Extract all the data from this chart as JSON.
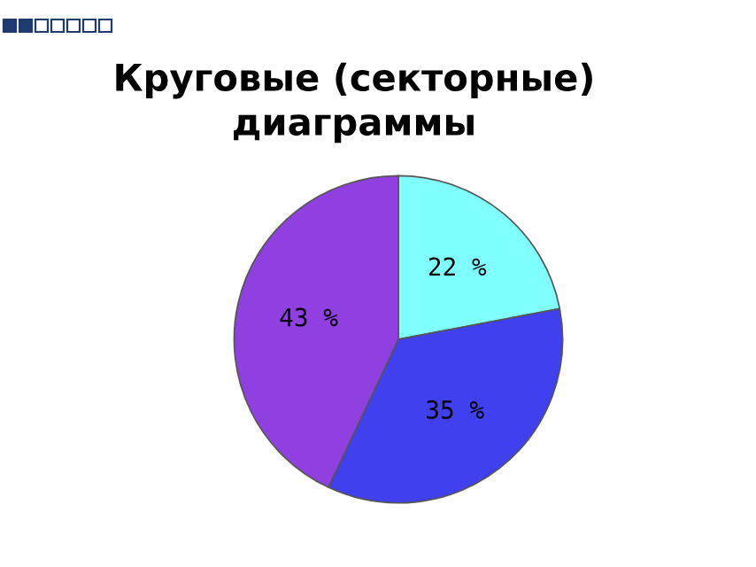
{
  "chart_data": {
    "type": "pie",
    "title": "Круговые (секторные)\nдиаграммы",
    "categories": [
      null,
      null,
      null
    ],
    "values": [
      22,
      35,
      43
    ],
    "colors": [
      "#80ffff",
      "#4040ee",
      "#9040e0"
    ],
    "value_labels": [
      "22 %",
      "35 %",
      "43 %"
    ]
  }
}
